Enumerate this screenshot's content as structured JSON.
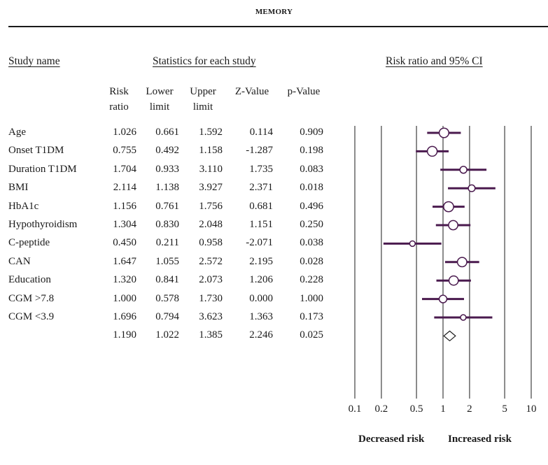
{
  "title": "MEMORY",
  "headers": {
    "study_name": "Study name",
    "statistics": "Statistics for each study",
    "forest": "Risk ratio and 95% CI"
  },
  "columns": [
    [
      "Risk",
      "ratio"
    ],
    [
      "Lower",
      "limit"
    ],
    [
      "Upper",
      "limit"
    ],
    [
      "",
      "Z-Value"
    ],
    [
      "",
      "p-Value"
    ]
  ],
  "footer": {
    "left": "Decreased risk",
    "right": "Increased risk"
  },
  "chart_data": {
    "type": "forest",
    "scale": "log",
    "xlim": [
      0.1,
      10
    ],
    "x_ticks": [
      "0.1",
      "0.2",
      "0.5",
      "1",
      "2",
      "5",
      "10"
    ],
    "x_tick_values": [
      0.1,
      0.2,
      0.5,
      1,
      2,
      5,
      10
    ],
    "marker_color": "#4a1a4e",
    "studies": [
      {
        "name": "Age",
        "rr": "1.026",
        "lower": "0.661",
        "upper": "1.592",
        "z": "0.114",
        "p": "0.909"
      },
      {
        "name": "Onset T1DM",
        "rr": "0.755",
        "lower": "0.492",
        "upper": "1.158",
        "z": "-1.287",
        "p": "0.198"
      },
      {
        "name": "Duration T1DM",
        "rr": "1.704",
        "lower": "0.933",
        "upper": "3.110",
        "z": "1.735",
        "p": "0.083"
      },
      {
        "name": "BMI",
        "rr": "2.114",
        "lower": "1.138",
        "upper": "3.927",
        "z": "2.371",
        "p": "0.018"
      },
      {
        "name": "HbA1c",
        "rr": "1.156",
        "lower": "0.761",
        "upper": "1.756",
        "z": "0.681",
        "p": "0.496"
      },
      {
        "name": "Hypothyroidism",
        "rr": "1.304",
        "lower": "0.830",
        "upper": "2.048",
        "z": "1.151",
        "p": "0.250"
      },
      {
        "name": "C-peptide",
        "rr": "0.450",
        "lower": "0.211",
        "upper": "0.958",
        "z": "-2.071",
        "p": "0.038"
      },
      {
        "name": "CAN",
        "rr": "1.647",
        "lower": "1.055",
        "upper": "2.572",
        "z": "2.195",
        "p": "0.028"
      },
      {
        "name": "Education",
        "rr": "1.320",
        "lower": "0.841",
        "upper": "2.073",
        "z": "1.206",
        "p": "0.228"
      },
      {
        "name": "CGM >7.8",
        "rr": "1.000",
        "lower": "0.578",
        "upper": "1.730",
        "z": "0.000",
        "p": "1.000"
      },
      {
        "name": "CGM <3.9",
        "rr": "1.696",
        "lower": "0.794",
        "upper": "3.623",
        "z": "1.363",
        "p": "0.173"
      }
    ],
    "summary": {
      "name": "",
      "rr": "1.190",
      "lower": "1.022",
      "upper": "1.385",
      "z": "2.246",
      "p": "0.025"
    }
  }
}
